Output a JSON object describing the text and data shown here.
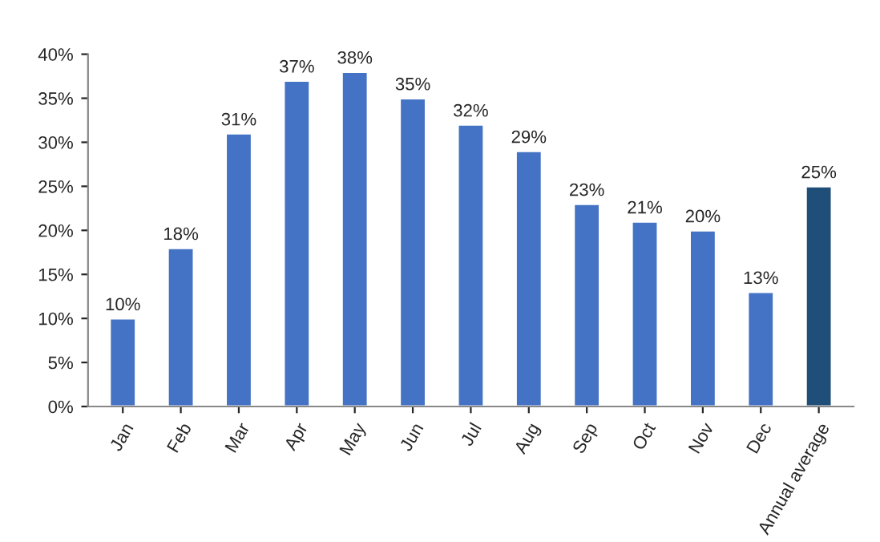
{
  "chart_data": {
    "type": "bar",
    "categories": [
      "Jan",
      "Feb",
      "Mar",
      "Apr",
      "May",
      "Jun",
      "Jul",
      "Aug",
      "Sep",
      "Oct",
      "Nov",
      "Dec",
      "Annual average"
    ],
    "values": [
      10,
      18,
      31,
      37,
      38,
      35,
      32,
      29,
      23,
      21,
      20,
      13,
      25
    ],
    "colors": [
      "#4472c4",
      "#4472c4",
      "#4472c4",
      "#4472c4",
      "#4472c4",
      "#4472c4",
      "#4472c4",
      "#4472c4",
      "#4472c4",
      "#4472c4",
      "#4472c4",
      "#4472c4",
      "#1f4e79"
    ],
    "value_labels": [
      "10%",
      "18%",
      "31%",
      "37%",
      "38%",
      "35%",
      "32%",
      "29%",
      "23%",
      "21%",
      "20%",
      "13%",
      "25%"
    ],
    "ylim": [
      0,
      40
    ],
    "yticks": [
      {
        "value": 0,
        "label": "0%"
      },
      {
        "value": 5,
        "label": "5%"
      },
      {
        "value": 10,
        "label": "10%"
      },
      {
        "value": 15,
        "label": "15%"
      },
      {
        "value": 20,
        "label": "20%"
      },
      {
        "value": 25,
        "label": "25%"
      },
      {
        "value": 30,
        "label": "30%"
      },
      {
        "value": 35,
        "label": "35%"
      },
      {
        "value": 40,
        "label": "40%"
      }
    ],
    "grid": false
  }
}
